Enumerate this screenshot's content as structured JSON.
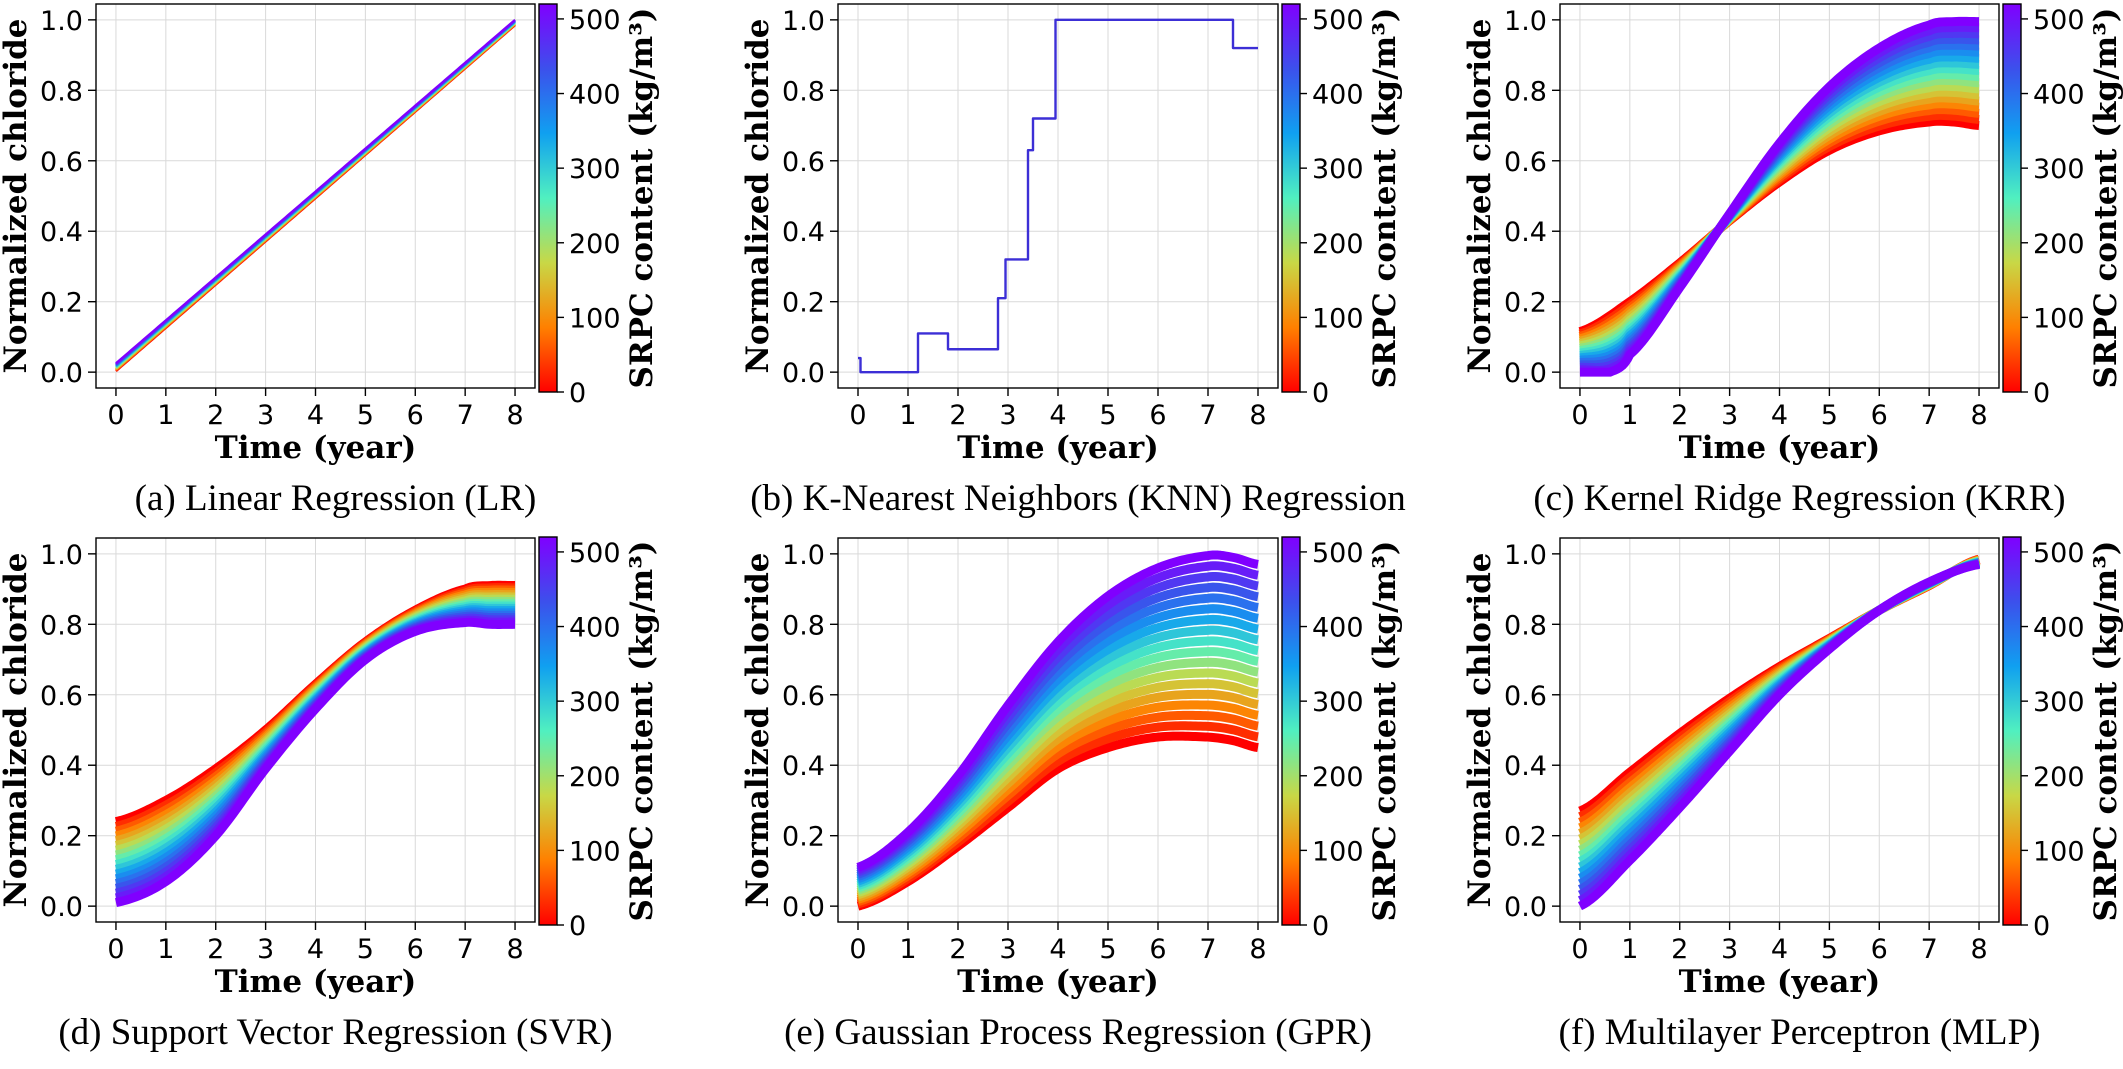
{
  "colormap": {
    "name": "rainbow",
    "stops": [
      "#ff0000",
      "#ff8000",
      "#c8d846",
      "#50f0c0",
      "#10a0f0",
      "#3c50ec",
      "#8000ff"
    ]
  },
  "colorbar": {
    "label": "SRPC content (kg/m³)",
    "ticks": [
      "0",
      "100",
      "200",
      "300",
      "400",
      "500"
    ],
    "tick_values": [
      0,
      100,
      200,
      300,
      400,
      500
    ],
    "range": [
      0,
      520
    ]
  },
  "chart_data": [
    {
      "id": "a",
      "type": "line",
      "method": "LR",
      "caption": "(a) Linear Regression (LR)",
      "xlabel": "Time (year)",
      "ylabel": "Normalized chloride",
      "xlim": [
        -0.4,
        8.4
      ],
      "ylim": [
        -0.045,
        1.045
      ],
      "xticks": [
        "0",
        "1",
        "2",
        "3",
        "4",
        "5",
        "6",
        "7",
        "8"
      ],
      "yticks": [
        "0.0",
        "0.2",
        "0.4",
        "0.6",
        "0.8",
        "1.0"
      ],
      "series_count": 12,
      "series_low": {
        "x": [
          0,
          8
        ],
        "y": [
          0.003,
          0.985
        ]
      },
      "series_high": {
        "x": [
          0,
          8
        ],
        "y": [
          0.025,
          1.0
        ]
      }
    },
    {
      "id": "b",
      "type": "line",
      "method": "KNN",
      "caption": "(b) K-Nearest Neighbors (KNN) Regression",
      "xlabel": "Time (year)",
      "ylabel": "Normalized chloride",
      "xlim": [
        -0.4,
        8.4
      ],
      "ylim": [
        -0.045,
        1.045
      ],
      "xticks": [
        "0",
        "1",
        "2",
        "3",
        "4",
        "5",
        "6",
        "7",
        "8"
      ],
      "yticks": [
        "0.0",
        "0.2",
        "0.4",
        "0.6",
        "0.8",
        "1.0"
      ],
      "series_count": 1,
      "series_low": {
        "x": [
          0,
          0.05,
          0.05,
          1.2,
          1.2,
          1.8,
          1.8,
          2.8,
          2.8,
          2.95,
          2.95,
          3.4,
          3.4,
          3.5,
          3.5,
          3.95,
          3.95,
          7.5,
          7.5,
          8
        ],
        "y": [
          0.04,
          0.04,
          0.0,
          0.0,
          0.11,
          0.11,
          0.065,
          0.065,
          0.21,
          0.21,
          0.32,
          0.32,
          0.63,
          0.63,
          0.72,
          0.72,
          1.0,
          1.0,
          0.92,
          0.92
        ]
      },
      "series_high": {
        "x": [
          0,
          0.05,
          0.05,
          1.2,
          1.2,
          1.8,
          1.8,
          2.8,
          2.8,
          2.95,
          2.95,
          3.4,
          3.4,
          3.5,
          3.5,
          3.95,
          3.95,
          7.5,
          7.5,
          8
        ],
        "y": [
          0.04,
          0.04,
          0.0,
          0.0,
          0.11,
          0.11,
          0.065,
          0.065,
          0.21,
          0.21,
          0.32,
          0.32,
          0.63,
          0.63,
          0.72,
          0.72,
          1.0,
          1.0,
          0.92,
          0.92
        ]
      }
    },
    {
      "id": "c",
      "type": "line",
      "method": "KRR",
      "caption": "(c) Kernel Ridge Regression (KRR)",
      "xlabel": "Time (year)",
      "ylabel": "Normalized chloride",
      "xlim": [
        -0.4,
        8.4
      ],
      "ylim": [
        -0.045,
        1.045
      ],
      "xticks": [
        "0",
        "1",
        "2",
        "3",
        "4",
        "5",
        "6",
        "7",
        "8"
      ],
      "yticks": [
        "0.0",
        "0.2",
        "0.4",
        "0.6",
        "0.8",
        "1.0"
      ],
      "series_count": 18,
      "series_low": {
        "x": [
          0,
          1,
          2,
          3,
          4,
          5,
          6,
          7,
          7.5,
          8
        ],
        "y": [
          0.115,
          0.2,
          0.31,
          0.43,
          0.54,
          0.63,
          0.685,
          0.71,
          0.71,
          0.7
        ]
      },
      "series_high": {
        "x": [
          0,
          0.6,
          1,
          2,
          3,
          4,
          5,
          6,
          7,
          7.5,
          8
        ],
        "y": [
          0.0,
          0.0,
          0.05,
          0.24,
          0.45,
          0.65,
          0.81,
          0.92,
          0.985,
          0.995,
          0.995
        ]
      }
    },
    {
      "id": "d",
      "type": "line",
      "method": "SVR",
      "caption": "(d) Support Vector Regression (SVR)",
      "xlabel": "Time (year)",
      "ylabel": "Normalized chloride",
      "xlim": [
        -0.4,
        8.4
      ],
      "ylim": [
        -0.045,
        1.045
      ],
      "xticks": [
        "0",
        "1",
        "2",
        "3",
        "4",
        "5",
        "6",
        "7",
        "8"
      ],
      "yticks": [
        "0.0",
        "0.2",
        "0.4",
        "0.6",
        "0.8",
        "1.0"
      ],
      "series_count": 18,
      "series_low": {
        "x": [
          0,
          1,
          2,
          3,
          4,
          5,
          6,
          7,
          7.5,
          8
        ],
        "y": [
          0.24,
          0.3,
          0.39,
          0.5,
          0.63,
          0.75,
          0.84,
          0.9,
          0.91,
          0.91
        ]
      },
      "series_high": {
        "x": [
          0,
          1,
          2,
          3,
          4,
          5,
          6,
          7,
          7.5,
          8
        ],
        "y": [
          0.01,
          0.07,
          0.2,
          0.39,
          0.56,
          0.7,
          0.78,
          0.805,
          0.8,
          0.8
        ]
      }
    },
    {
      "id": "e",
      "type": "line",
      "method": "GPR",
      "caption": "(e) Gaussian Process Regression (GPR)",
      "xlabel": "Time (year)",
      "ylabel": "Normalized chloride",
      "xlim": [
        -0.4,
        8.4
      ],
      "ylim": [
        -0.045,
        1.045
      ],
      "xticks": [
        "0",
        "1",
        "2",
        "3",
        "4",
        "5",
        "6",
        "7",
        "8"
      ],
      "yticks": [
        "0.0",
        "0.2",
        "0.4",
        "0.6",
        "0.8",
        "1.0"
      ],
      "series_count": 18,
      "series_low": {
        "x": [
          0,
          1,
          2,
          3,
          4,
          5,
          6,
          7,
          7.5,
          8
        ],
        "y": [
          0.0,
          0.07,
          0.17,
          0.28,
          0.39,
          0.45,
          0.48,
          0.48,
          0.47,
          0.45
        ]
      },
      "series_high": {
        "x": [
          0,
          1,
          2,
          3,
          4,
          5,
          6,
          7,
          7.5,
          8
        ],
        "y": [
          0.11,
          0.21,
          0.37,
          0.57,
          0.75,
          0.88,
          0.96,
          0.995,
          0.99,
          0.97
        ]
      }
    },
    {
      "id": "f",
      "type": "line",
      "method": "MLP",
      "caption": "(f) Multilayer Perceptron (MLP)",
      "xlabel": "Time (year)",
      "ylabel": "Normalized chloride",
      "xlim": [
        -0.4,
        8.4
      ],
      "ylim": [
        -0.045,
        1.045
      ],
      "xticks": [
        "0",
        "1",
        "2",
        "3",
        "4",
        "5",
        "6",
        "7",
        "8"
      ],
      "yticks": [
        "0.0",
        "0.2",
        "0.4",
        "0.6",
        "0.8",
        "1.0"
      ],
      "series_count": 18,
      "series_low": {
        "x": [
          0,
          1,
          2,
          3,
          4,
          5,
          6,
          7,
          8
        ],
        "y": [
          0.27,
          0.38,
          0.49,
          0.59,
          0.68,
          0.76,
          0.84,
          0.91,
          0.985
        ]
      },
      "series_high": {
        "x": [
          0,
          1,
          2,
          3,
          4,
          5,
          6,
          7,
          8
        ],
        "y": [
          0.0,
          0.13,
          0.28,
          0.44,
          0.6,
          0.73,
          0.84,
          0.92,
          0.97
        ]
      }
    }
  ]
}
